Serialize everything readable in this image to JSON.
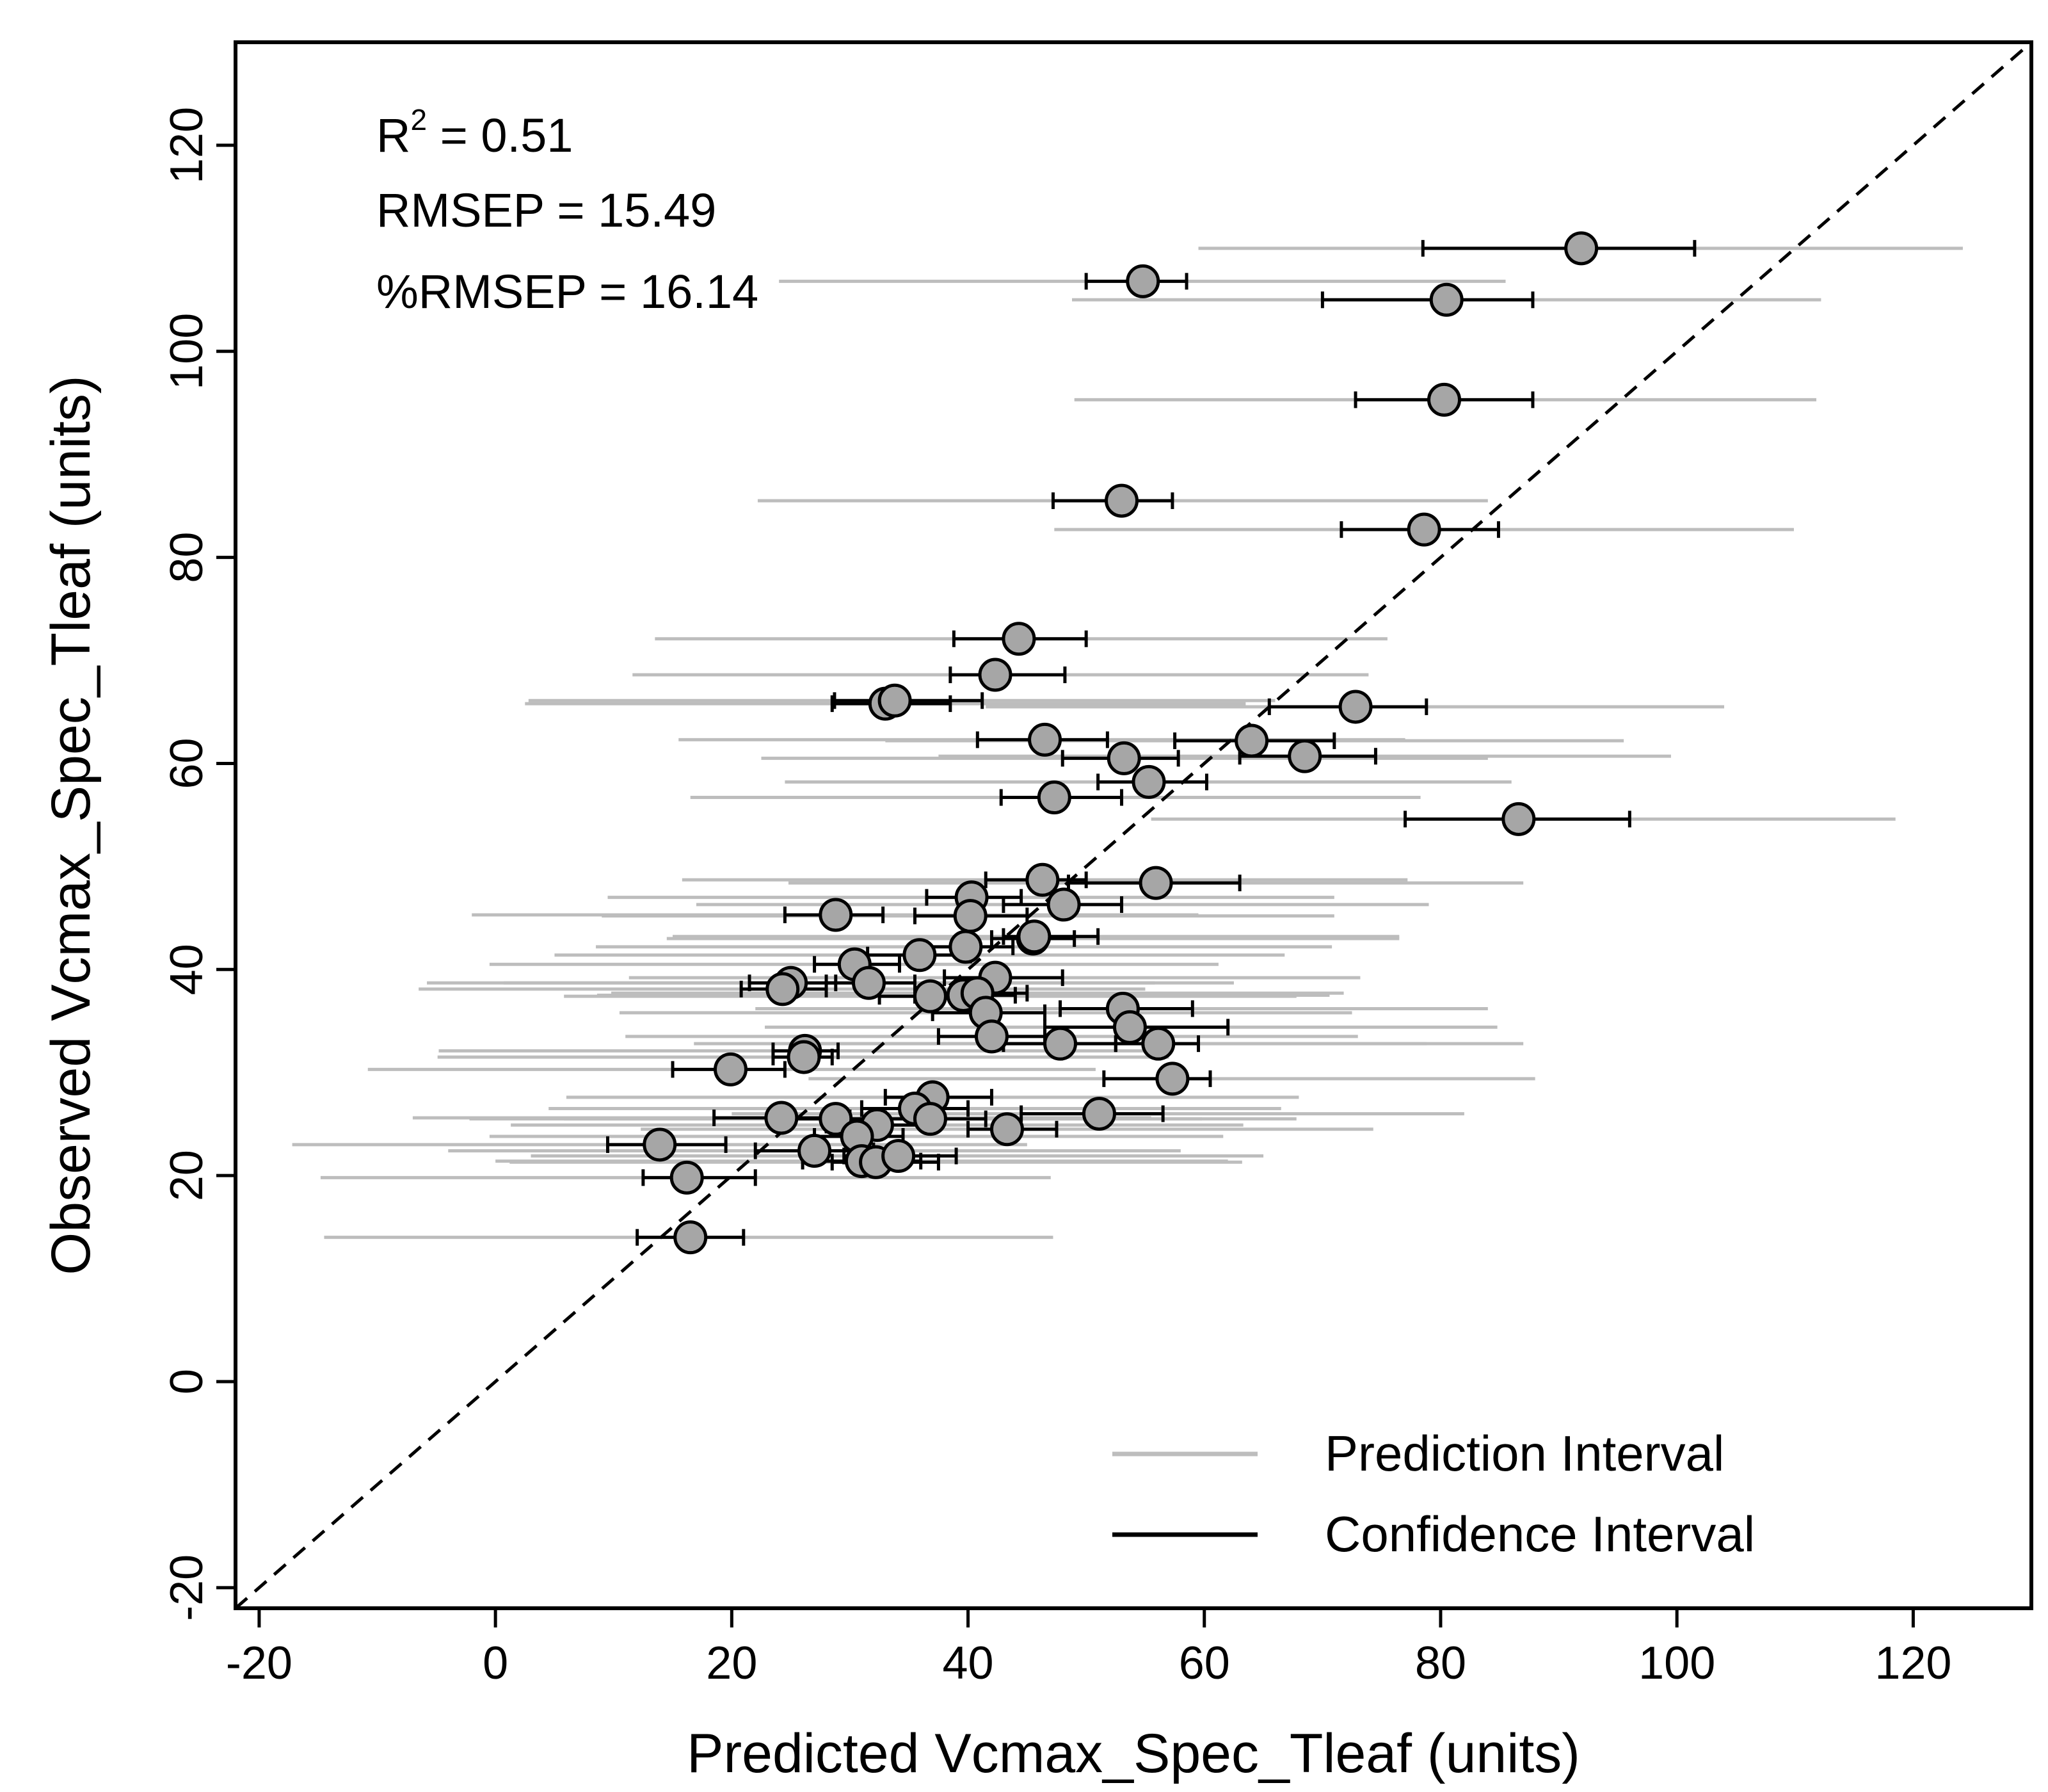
{
  "chart_data": {
    "type": "scatter",
    "xlabel": "Predicted Vcmax_Spec_Tleaf (units)",
    "ylabel": "Observed Vcmax_Spec_Tleaf (units)",
    "xlim": [
      -22,
      130
    ],
    "ylim": [
      -22,
      130
    ],
    "xticks": [
      -20,
      0,
      20,
      40,
      60,
      80,
      100,
      120
    ],
    "yticks": [
      -20,
      0,
      20,
      40,
      60,
      80,
      100,
      120
    ],
    "grid": false,
    "reference_line": "1:1 dashed",
    "annotations": {
      "r2_label": "R",
      "r2_exp": "2",
      "r2_value": " = 0.51",
      "rmsep": "RMSEP = 15.49",
      "pct_rmsep": "%RMSEP = 16.14"
    },
    "legend": {
      "position": "bottom-right",
      "entries": [
        {
          "label": "Prediction Interval",
          "color": "#bdbdbd"
        },
        {
          "label": "Confidence Interval",
          "color": "#000000"
        }
      ]
    },
    "colors": {
      "point_fill": "#a6a6a6",
      "point_stroke": "#000000",
      "pi": "#bdbdbd",
      "ci": "#000000"
    },
    "points": [
      {
        "x": 91.9,
        "y": 110.0,
        "ci": [
          78.5,
          101.5
        ],
        "pi": [
          59.5,
          124.2
        ]
      },
      {
        "x": 54.8,
        "y": 106.8,
        "ci": [
          50.0,
          58.5
        ],
        "pi": [
          24.0,
          85.5
        ]
      },
      {
        "x": 80.5,
        "y": 105.0,
        "ci": [
          70.0,
          87.8
        ],
        "pi": [
          48.8,
          112.2
        ]
      },
      {
        "x": 80.3,
        "y": 95.3,
        "ci": [
          72.8,
          87.8
        ],
        "pi": [
          49.0,
          111.8
        ]
      },
      {
        "x": 53.0,
        "y": 85.5,
        "ci": [
          47.2,
          57.3
        ],
        "pi": [
          22.2,
          84.0
        ]
      },
      {
        "x": 78.6,
        "y": 82.7,
        "ci": [
          71.6,
          84.9
        ],
        "pi": [
          47.3,
          109.9
        ]
      },
      {
        "x": 44.3,
        "y": 72.1,
        "ci": [
          38.8,
          50.0
        ],
        "pi": [
          13.5,
          75.5
        ]
      },
      {
        "x": 42.3,
        "y": 68.6,
        "ci": [
          38.5,
          48.2
        ],
        "pi": [
          11.6,
          73.9
        ]
      },
      {
        "x": 33.0,
        "y": 65.8,
        "ci": [
          28.5,
          38.5
        ],
        "pi": [
          2.5,
          63.5
        ]
      },
      {
        "x": 33.8,
        "y": 66.1,
        "ci": [
          28.7,
          41.2
        ],
        "pi": [
          2.8,
          66.0
        ]
      },
      {
        "x": 72.8,
        "y": 65.5,
        "ci": [
          65.5,
          78.8
        ],
        "pi": [
          41.5,
          104.0
        ]
      },
      {
        "x": 46.5,
        "y": 62.3,
        "ci": [
          40.8,
          51.8
        ],
        "pi": [
          15.5,
          77.0
        ]
      },
      {
        "x": 64.0,
        "y": 62.2,
        "ci": [
          57.5,
          71.0
        ],
        "pi": [
          33.0,
          95.5
        ]
      },
      {
        "x": 68.5,
        "y": 60.7,
        "ci": [
          63.0,
          74.5
        ],
        "pi": [
          37.5,
          99.5
        ]
      },
      {
        "x": 53.2,
        "y": 60.5,
        "ci": [
          48.0,
          57.8
        ],
        "pi": [
          22.5,
          84.0
        ]
      },
      {
        "x": 55.3,
        "y": 58.2,
        "ci": [
          51.0,
          60.2
        ],
        "pi": [
          24.5,
          86.0
        ]
      },
      {
        "x": 47.3,
        "y": 56.7,
        "ci": [
          42.8,
          53.0
        ],
        "pi": [
          16.5,
          78.3
        ]
      },
      {
        "x": 86.6,
        "y": 54.6,
        "ci": [
          77.0,
          96.0
        ],
        "pi": [
          55.5,
          118.5
        ]
      },
      {
        "x": 46.3,
        "y": 48.7,
        "ci": [
          41.5,
          50.0
        ],
        "pi": [
          15.8,
          77.2
        ]
      },
      {
        "x": 55.9,
        "y": 48.4,
        "ci": [
          48.5,
          63.0
        ],
        "pi": [
          24.8,
          87.0
        ]
      },
      {
        "x": 40.3,
        "y": 47.0,
        "ci": [
          36.5,
          44.5
        ],
        "pi": [
          9.5,
          71.0
        ]
      },
      {
        "x": 48.1,
        "y": 46.3,
        "ci": [
          43.0,
          53.0
        ],
        "pi": [
          17.0,
          79.0
        ]
      },
      {
        "x": 28.8,
        "y": 45.3,
        "ci": [
          24.5,
          32.8
        ],
        "pi": [
          -2.0,
          59.5
        ]
      },
      {
        "x": 40.2,
        "y": 45.2,
        "ci": [
          35.5,
          45.0
        ],
        "pi": [
          9.0,
          71.0
        ]
      },
      {
        "x": 45.5,
        "y": 43.0,
        "ci": [
          42.0,
          49.0
        ],
        "pi": [
          14.5,
          76.5
        ]
      },
      {
        "x": 45.6,
        "y": 43.2,
        "ci": [
          43.0,
          51.0
        ],
        "pi": [
          15.0,
          76.5
        ]
      },
      {
        "x": 39.8,
        "y": 42.2,
        "ci": [
          36.0,
          43.8
        ],
        "pi": [
          8.5,
          70.8
        ]
      },
      {
        "x": 35.9,
        "y": 41.4,
        "ci": [
          31.5,
          40.2
        ],
        "pi": [
          5.0,
          66.8
        ]
      },
      {
        "x": 30.4,
        "y": 40.5,
        "ci": [
          27.0,
          34.2
        ],
        "pi": [
          -0.5,
          61.2
        ]
      },
      {
        "x": 42.3,
        "y": 39.2,
        "ci": [
          38.0,
          48.0
        ],
        "pi": [
          11.3,
          73.2
        ]
      },
      {
        "x": 31.6,
        "y": 38.7,
        "ci": [
          28.0,
          35.5
        ],
        "pi": [
          0.7,
          62.5
        ]
      },
      {
        "x": 25.0,
        "y": 38.7,
        "ci": [
          21.5,
          28.8
        ],
        "pi": [
          -5.8,
          55.8
        ]
      },
      {
        "x": 24.3,
        "y": 38.1,
        "ci": [
          20.8,
          28.0
        ],
        "pi": [
          -6.5,
          55.0
        ]
      },
      {
        "x": 36.8,
        "y": 37.4,
        "ci": [
          32.5,
          41.0
        ],
        "pi": [
          5.8,
          67.8
        ]
      },
      {
        "x": 39.6,
        "y": 37.5,
        "ci": [
          35.5,
          44.0
        ],
        "pi": [
          8.6,
          70.6
        ]
      },
      {
        "x": 40.8,
        "y": 37.7,
        "ci": [
          36.5,
          45.0
        ],
        "pi": [
          9.8,
          71.8
        ]
      },
      {
        "x": 41.5,
        "y": 35.8,
        "ci": [
          37.0,
          46.5
        ],
        "pi": [
          10.5,
          72.5
        ]
      },
      {
        "x": 53.1,
        "y": 36.2,
        "ci": [
          47.8,
          59.0
        ],
        "pi": [
          22.0,
          84.0
        ]
      },
      {
        "x": 53.7,
        "y": 34.4,
        "ci": [
          46.5,
          62.0
        ],
        "pi": [
          22.8,
          84.8
        ]
      },
      {
        "x": 42.0,
        "y": 33.5,
        "ci": [
          37.5,
          46.5
        ],
        "pi": [
          11.0,
          73.0
        ]
      },
      {
        "x": 47.8,
        "y": 32.8,
        "ci": [
          43.0,
          52.5
        ],
        "pi": [
          16.8,
          78.8
        ]
      },
      {
        "x": 56.1,
        "y": 32.8,
        "ci": [
          52.5,
          59.5
        ],
        "pi": [
          25.0,
          87.0
        ]
      },
      {
        "x": 26.2,
        "y": 32.1,
        "ci": [
          23.5,
          29.0
        ],
        "pi": [
          -4.8,
          57.2
        ]
      },
      {
        "x": 26.1,
        "y": 31.5,
        "ci": [
          23.5,
          28.5
        ],
        "pi": [
          -4.9,
          57.0
        ]
      },
      {
        "x": 19.9,
        "y": 30.3,
        "ci": [
          15.0,
          24.5
        ],
        "pi": [
          -10.8,
          50.8
        ]
      },
      {
        "x": 57.3,
        "y": 29.4,
        "ci": [
          51.5,
          60.5
        ],
        "pi": [
          26.5,
          88.0
        ]
      },
      {
        "x": 51.1,
        "y": 26.0,
        "ci": [
          44.5,
          56.5
        ],
        "pi": [
          20.0,
          82.0
        ]
      },
      {
        "x": 37.0,
        "y": 27.6,
        "ci": [
          33.0,
          42.0
        ],
        "pi": [
          6.0,
          68.0
        ]
      },
      {
        "x": 35.5,
        "y": 26.5,
        "ci": [
          31.0,
          40.0
        ],
        "pi": [
          4.5,
          66.5
        ]
      },
      {
        "x": 24.2,
        "y": 25.6,
        "ci": [
          18.5,
          30.0
        ],
        "pi": [
          -7.0,
          55.5
        ]
      },
      {
        "x": 36.8,
        "y": 25.5,
        "ci": [
          32.5,
          41.5
        ],
        "pi": [
          5.8,
          67.8
        ]
      },
      {
        "x": 28.8,
        "y": 25.5,
        "ci": [
          25.0,
          33.0
        ],
        "pi": [
          -2.2,
          59.8
        ]
      },
      {
        "x": 32.3,
        "y": 24.9,
        "ci": [
          28.0,
          36.5
        ],
        "pi": [
          1.3,
          63.3
        ]
      },
      {
        "x": 43.3,
        "y": 24.5,
        "ci": [
          40.0,
          47.5
        ],
        "pi": [
          12.3,
          74.3
        ]
      },
      {
        "x": 30.6,
        "y": 23.8,
        "ci": [
          27.0,
          34.5
        ],
        "pi": [
          -0.5,
          61.6
        ]
      },
      {
        "x": 13.9,
        "y": 23.0,
        "ci": [
          9.5,
          19.5
        ],
        "pi": [
          -17.2,
          45.0
        ]
      },
      {
        "x": 27.0,
        "y": 22.4,
        "ci": [
          22.0,
          32.0
        ],
        "pi": [
          -4.0,
          58.0
        ]
      },
      {
        "x": 31.0,
        "y": 21.4,
        "ci": [
          26.0,
          36.0
        ],
        "pi": [
          0.0,
          62.0
        ]
      },
      {
        "x": 32.2,
        "y": 21.3,
        "ci": [
          28.5,
          37.5
        ],
        "pi": [
          1.2,
          63.2
        ]
      },
      {
        "x": 34.1,
        "y": 21.9,
        "ci": [
          29.5,
          39.0
        ],
        "pi": [
          3.0,
          65.0
        ]
      },
      {
        "x": 16.2,
        "y": 19.8,
        "ci": [
          12.5,
          22.0
        ],
        "pi": [
          -14.8,
          47.0
        ]
      },
      {
        "x": 16.5,
        "y": 14.0,
        "ci": [
          12.0,
          21.0
        ],
        "pi": [
          -14.5,
          47.2
        ]
      }
    ]
  }
}
